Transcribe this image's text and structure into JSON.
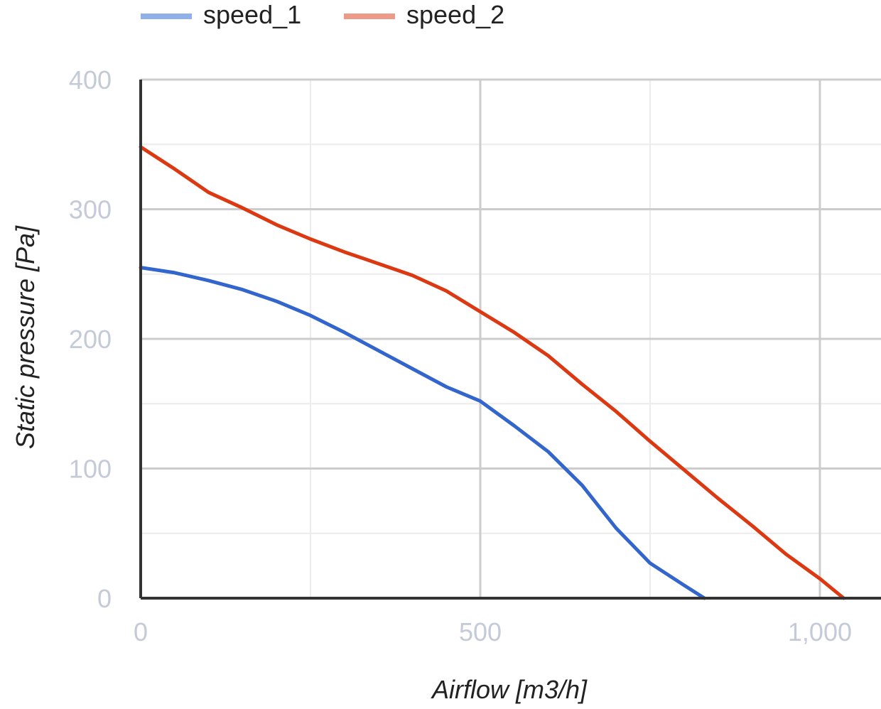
{
  "chart_data": {
    "type": "line",
    "title": "",
    "xlabel": "Airflow [m3/h]",
    "ylabel": "Static pressure [Pa]",
    "xlim": [
      0,
      1090
    ],
    "ylim": [
      0,
      400
    ],
    "x_ticks": [
      0,
      500,
      1000
    ],
    "x_tick_labels": [
      "0",
      "500",
      "1,000"
    ],
    "y_ticks": [
      0,
      100,
      200,
      300,
      400
    ],
    "y_tick_labels": [
      "0",
      "100",
      "200",
      "300",
      "400"
    ],
    "x_minor_gridlines": [
      250,
      750
    ],
    "y_minor_gridlines": [
      50,
      150,
      250,
      350
    ],
    "grid": true,
    "legend_position": "top",
    "series": [
      {
        "name": "speed_1",
        "color": "#3366cc",
        "legend_color": "#8fb0e8",
        "x": [
          0,
          50,
          100,
          150,
          200,
          250,
          300,
          350,
          400,
          450,
          500,
          550,
          600,
          650,
          700,
          750,
          800,
          830
        ],
        "y": [
          255,
          251,
          245,
          238,
          229,
          218,
          205,
          191,
          177,
          163,
          152,
          133,
          113,
          87,
          54,
          27,
          10,
          0
        ]
      },
      {
        "name": "speed_2",
        "color": "#dc3912",
        "legend_color": "#ee9a88",
        "x": [
          0,
          50,
          100,
          150,
          200,
          250,
          300,
          350,
          400,
          450,
          500,
          550,
          600,
          650,
          700,
          750,
          800,
          850,
          900,
          950,
          1000,
          1035
        ],
        "y": [
          348,
          331,
          313,
          301,
          288,
          277,
          267,
          258,
          249,
          237,
          221,
          205,
          187,
          165,
          144,
          121,
          99,
          77,
          56,
          34,
          15,
          0
        ]
      }
    ]
  }
}
